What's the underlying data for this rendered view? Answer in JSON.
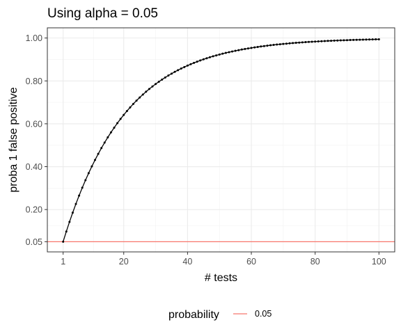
{
  "chart_data": {
    "type": "line",
    "title": "Using alpha = 0.05",
    "xlabel": "# tests",
    "ylabel": "proba 1 false positive",
    "xlim": [
      1,
      100
    ],
    "ylim": [
      0.05,
      1.0
    ],
    "x_ticks": [
      1,
      20,
      40,
      60,
      80,
      100
    ],
    "x_tick_labels": [
      "1",
      "20",
      "40",
      "60",
      "80",
      "100"
    ],
    "y_ticks": [
      0.05,
      0.2,
      0.4,
      0.6,
      0.8,
      1.0
    ],
    "y_tick_labels": [
      "0.05",
      "0.20",
      "0.40",
      "0.60",
      "0.80",
      "1.00"
    ],
    "grid": true,
    "legend_position": "bottom",
    "colors": {
      "series": "#000000",
      "reference": "#f8766d",
      "grid": "#ebebeb",
      "border": "#333333"
    },
    "series": [
      {
        "x": [
          1,
          2,
          3,
          4,
          5,
          6,
          7,
          8,
          9,
          10,
          11,
          12,
          13,
          14,
          15,
          16,
          17,
          18,
          19,
          20,
          21,
          22,
          23,
          24,
          25,
          26,
          27,
          28,
          29,
          30,
          31,
          32,
          33,
          34,
          35,
          36,
          37,
          38,
          39,
          40,
          41,
          42,
          43,
          44,
          45,
          46,
          47,
          48,
          49,
          50,
          51,
          52,
          53,
          54,
          55,
          56,
          57,
          58,
          59,
          60,
          61,
          62,
          63,
          64,
          65,
          66,
          67,
          68,
          69,
          70,
          71,
          72,
          73,
          74,
          75,
          76,
          77,
          78,
          79,
          80,
          81,
          82,
          83,
          84,
          85,
          86,
          87,
          88,
          89,
          90,
          91,
          92,
          93,
          94,
          95,
          96,
          97,
          98,
          99,
          100
        ],
        "values": [
          0.05,
          0.0975,
          0.1426,
          0.1855,
          0.2262,
          0.2649,
          0.3017,
          0.3366,
          0.3698,
          0.4013,
          0.4312,
          0.4596,
          0.4867,
          0.5123,
          0.5367,
          0.5599,
          0.5819,
          0.6028,
          0.6226,
          0.6415,
          0.6594,
          0.6765,
          0.6926,
          0.708,
          0.7226,
          0.7365,
          0.7497,
          0.7622,
          0.7741,
          0.7854,
          0.7961,
          0.8063,
          0.816,
          0.8252,
          0.8339,
          0.8422,
          0.8501,
          0.8576,
          0.8647,
          0.8715,
          0.8779,
          0.884,
          0.8898,
          0.8953,
          0.9006,
          0.9055,
          0.9103,
          0.9147,
          0.919,
          0.9231,
          0.9269,
          0.9306,
          0.934,
          0.9373,
          0.9405,
          0.9434,
          0.9463,
          0.9489,
          0.9515,
          0.9539,
          0.9562,
          0.9584,
          0.9605,
          0.9625,
          0.9644,
          0.9662,
          0.9679,
          0.9695,
          0.971,
          0.9724,
          0.9738,
          0.9751,
          0.9764,
          0.9776,
          0.9787,
          0.9798,
          0.9808,
          0.9817,
          0.9826,
          0.9835,
          0.9843,
          0.9851,
          0.9858,
          0.9865,
          0.9872,
          0.9878,
          0.9884,
          0.989,
          0.9896,
          0.9901,
          0.9906,
          0.9911,
          0.9915,
          0.9919,
          0.9923,
          0.9927,
          0.9931,
          0.9934,
          0.9938,
          0.9941
        ]
      }
    ],
    "reference_line": {
      "y": 0.05
    },
    "legend": {
      "title": "probability",
      "items": [
        {
          "label": "0.05"
        }
      ]
    }
  }
}
